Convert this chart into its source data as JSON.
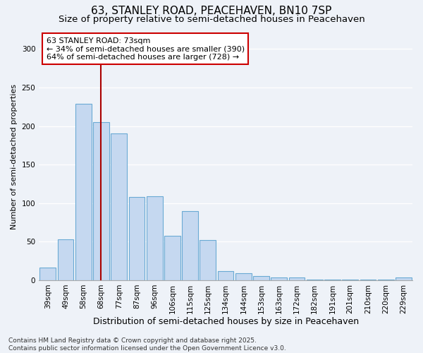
{
  "title": "63, STANLEY ROAD, PEACEHAVEN, BN10 7SP",
  "subtitle": "Size of property relative to semi-detached houses in Peacehaven",
  "xlabel": "Distribution of semi-detached houses by size in Peacehaven",
  "ylabel": "Number of semi-detached properties",
  "categories": [
    "39sqm",
    "49sqm",
    "58sqm",
    "68sqm",
    "77sqm",
    "87sqm",
    "96sqm",
    "106sqm",
    "115sqm",
    "125sqm",
    "134sqm",
    "144sqm",
    "153sqm",
    "163sqm",
    "172sqm",
    "182sqm",
    "191sqm",
    "201sqm",
    "210sqm",
    "220sqm",
    "229sqm"
  ],
  "values": [
    16,
    53,
    229,
    205,
    190,
    108,
    109,
    58,
    90,
    52,
    12,
    9,
    5,
    4,
    4,
    1,
    1,
    1,
    1,
    1,
    4
  ],
  "bar_color": "#c5d8f0",
  "bar_edge_color": "#6aaad4",
  "vline_x_index": 3,
  "vline_color": "#aa0000",
  "annotation_text": "63 STANLEY ROAD: 73sqm\n← 34% of semi-detached houses are smaller (390)\n64% of semi-detached houses are larger (728) →",
  "annotation_box_facecolor": "#ffffff",
  "annotation_box_edgecolor": "#cc0000",
  "ylim": [
    0,
    320
  ],
  "yticks": [
    0,
    50,
    100,
    150,
    200,
    250,
    300
  ],
  "footnote": "Contains HM Land Registry data © Crown copyright and database right 2025.\nContains public sector information licensed under the Open Government Licence v3.0.",
  "background_color": "#eef2f8",
  "grid_color": "#ffffff",
  "title_fontsize": 11,
  "subtitle_fontsize": 9.5,
  "xlabel_fontsize": 9,
  "ylabel_fontsize": 8,
  "tick_fontsize": 7.5,
  "annotation_fontsize": 8,
  "footnote_fontsize": 6.5
}
